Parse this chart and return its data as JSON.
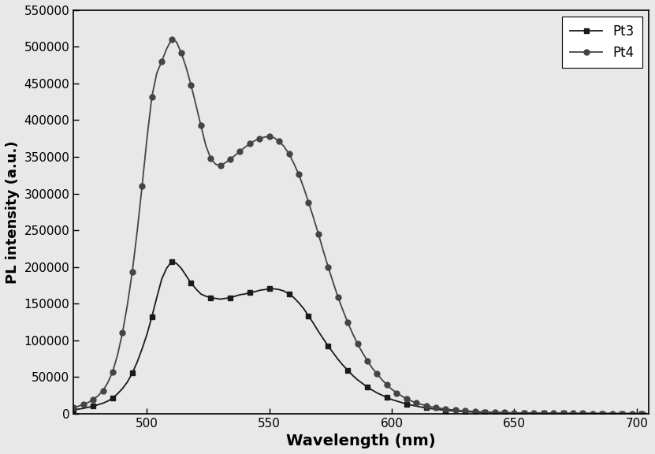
{
  "title": "",
  "xlabel": "Wavelength (nm)",
  "ylabel": "PL intensity (a.u.)",
  "xlim": [
    470,
    705
  ],
  "ylim": [
    0,
    550000
  ],
  "yticks": [
    0,
    50000,
    100000,
    150000,
    200000,
    250000,
    300000,
    350000,
    400000,
    450000,
    500000,
    550000
  ],
  "xticks": [
    500,
    550,
    600,
    650,
    700
  ],
  "background_color": "#e8e8e8",
  "plot_bg_color": "#e8e8e8",
  "Pt3_x": [
    470,
    472,
    474,
    476,
    478,
    480,
    482,
    484,
    486,
    488,
    490,
    492,
    494,
    496,
    498,
    500,
    502,
    504,
    506,
    508,
    510,
    512,
    514,
    516,
    518,
    520,
    522,
    524,
    526,
    528,
    530,
    532,
    534,
    536,
    538,
    540,
    542,
    544,
    546,
    548,
    550,
    552,
    554,
    556,
    558,
    560,
    562,
    564,
    566,
    568,
    570,
    572,
    574,
    576,
    578,
    580,
    582,
    584,
    586,
    588,
    590,
    592,
    594,
    596,
    598,
    600,
    602,
    604,
    606,
    608,
    610,
    612,
    614,
    616,
    618,
    620,
    622,
    624,
    626,
    628,
    630,
    632,
    634,
    636,
    638,
    640,
    642,
    644,
    646,
    648,
    650,
    652,
    654,
    656,
    658,
    660,
    662,
    664,
    666,
    668,
    670,
    672,
    674,
    676,
    678,
    680,
    682,
    684,
    686,
    688,
    690,
    692,
    694,
    696,
    698,
    700,
    702,
    704
  ],
  "Pt3_y": [
    5000,
    6000,
    7000,
    8500,
    10000,
    12000,
    14000,
    17000,
    21000,
    27000,
    34000,
    43000,
    55000,
    70000,
    88000,
    108000,
    132000,
    158000,
    183000,
    198000,
    207000,
    205000,
    198000,
    188000,
    178000,
    170000,
    163000,
    160000,
    158000,
    157000,
    156000,
    157000,
    158000,
    160000,
    162000,
    163000,
    165000,
    166000,
    168000,
    169000,
    170000,
    170000,
    169000,
    167000,
    163000,
    158000,
    151000,
    143000,
    133000,
    123000,
    112000,
    102000,
    92000,
    83000,
    74000,
    66000,
    59000,
    52000,
    46000,
    41000,
    36000,
    32000,
    28000,
    25000,
    22000,
    19000,
    17000,
    15000,
    13000,
    11500,
    10000,
    8800,
    7700,
    6700,
    5800,
    5100,
    4400,
    3900,
    3400,
    3000,
    2600,
    2300,
    2000,
    1800,
    1600,
    1400,
    1200,
    1100,
    950,
    850,
    750,
    650,
    580,
    510,
    450,
    400,
    350,
    310,
    270,
    240,
    210,
    190,
    170,
    150,
    130,
    115,
    100,
    88,
    75,
    65,
    55,
    46,
    38,
    32,
    26,
    22,
    18,
    15
  ],
  "Pt4_x": [
    470,
    472,
    474,
    476,
    478,
    480,
    482,
    484,
    486,
    488,
    490,
    492,
    494,
    496,
    498,
    500,
    502,
    504,
    506,
    508,
    510,
    512,
    514,
    516,
    518,
    520,
    522,
    524,
    526,
    528,
    530,
    532,
    534,
    536,
    538,
    540,
    542,
    544,
    546,
    548,
    550,
    552,
    554,
    556,
    558,
    560,
    562,
    564,
    566,
    568,
    570,
    572,
    574,
    576,
    578,
    580,
    582,
    584,
    586,
    588,
    590,
    592,
    594,
    596,
    598,
    600,
    602,
    604,
    606,
    608,
    610,
    612,
    614,
    616,
    618,
    620,
    622,
    624,
    626,
    628,
    630,
    632,
    634,
    636,
    638,
    640,
    642,
    644,
    646,
    648,
    650,
    652,
    654,
    656,
    658,
    660,
    662,
    664,
    666,
    668,
    670,
    672,
    674,
    676,
    678,
    680,
    682,
    684,
    686,
    688,
    690,
    692,
    694,
    696,
    698,
    700,
    702,
    704
  ],
  "Pt4_y": [
    8000,
    10000,
    12500,
    15000,
    19000,
    24000,
    31000,
    42000,
    57000,
    80000,
    110000,
    148000,
    193000,
    248000,
    310000,
    375000,
    432000,
    464000,
    480000,
    497000,
    510000,
    507000,
    492000,
    472000,
    448000,
    421000,
    393000,
    366000,
    348000,
    340000,
    338000,
    342000,
    347000,
    352000,
    358000,
    363000,
    368000,
    372000,
    375000,
    377000,
    378000,
    376000,
    371000,
    364000,
    354000,
    341000,
    326000,
    308000,
    288000,
    267000,
    245000,
    222000,
    200000,
    179000,
    159000,
    141000,
    124000,
    109000,
    95000,
    83000,
    72000,
    62000,
    54000,
    46000,
    39000,
    33000,
    28000,
    24000,
    20000,
    17000,
    14500,
    12500,
    10800,
    9300,
    8000,
    7000,
    6100,
    5300,
    4600,
    4000,
    3500,
    3100,
    2700,
    2400,
    2100,
    1850,
    1630,
    1430,
    1250,
    1100,
    960,
    840,
    730,
    640,
    560,
    490,
    430,
    380,
    330,
    290,
    250,
    220,
    195,
    170,
    150,
    130,
    113,
    98,
    85,
    73,
    63,
    54,
    46,
    40,
    34,
    29,
    24,
    20
  ],
  "Pt3_color": "#1a1a1a",
  "Pt4_color": "#444444",
  "Pt3_marker": "s",
  "Pt4_marker": "o",
  "Pt3_marker_every": 4,
  "Pt4_marker_every": 2,
  "marker_size": 5,
  "linewidth": 1.3,
  "legend_loc": "upper right"
}
